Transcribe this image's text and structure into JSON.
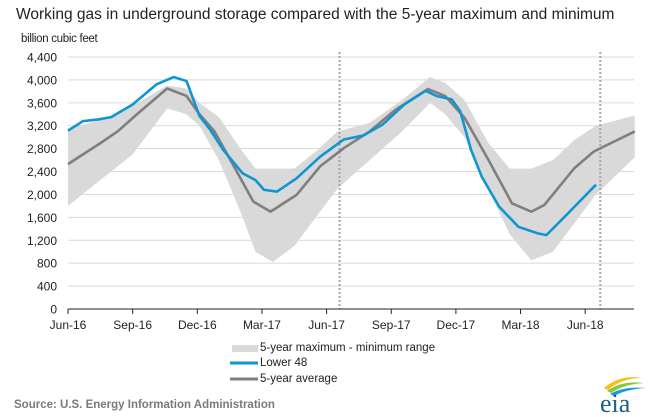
{
  "chart_data": {
    "type": "line",
    "title": "Working gas in underground  storage compared with the 5-year maximum and minimum",
    "ylabel": "billion cubic feet",
    "xlabel": "",
    "x_unit": "months since Jun-16",
    "ylim": [
      0,
      4400
    ],
    "xlim": [
      0,
      26.3
    ],
    "yticks": [
      "0",
      "400",
      "800",
      "1,200",
      "1,600",
      "2,000",
      "2,400",
      "2,800",
      "3,200",
      "3,600",
      "4,000",
      "4,400"
    ],
    "ytick_values": [
      0,
      400,
      800,
      1200,
      1600,
      2000,
      2400,
      2800,
      3200,
      3600,
      4000,
      4400
    ],
    "xticks": [
      "Jun-16",
      "Sep-16",
      "Dec-16",
      "Mar-17",
      "Jun-17",
      "Sep-17",
      "Dec-17",
      "Mar-18",
      "Jun-18"
    ],
    "xtick_values": [
      0,
      3,
      6,
      9,
      12,
      15,
      18,
      21,
      24
    ],
    "grid": true,
    "vertical_markers": [
      12.6,
      24.7
    ],
    "legend_position": "bottom",
    "range": {
      "name": "5-year maximum - minimum range",
      "color": "#d9d9d9",
      "x": [
        0,
        2,
        3,
        4.6,
        5.5,
        6.1,
        7,
        8,
        8.7,
        9.5,
        10.5,
        11.5,
        12.5,
        14,
        15.5,
        16.8,
        17.5,
        18.4,
        19.5,
        20.5,
        21.5,
        22.5,
        23.5,
        24.5,
        26.3
      ],
      "max": [
        3150,
        3350,
        3550,
        3900,
        3850,
        3600,
        3350,
        2800,
        2450,
        2450,
        2450,
        2750,
        3100,
        3250,
        3650,
        4050,
        3950,
        3650,
        2900,
        2450,
        2450,
        2600,
        2950,
        3200,
        3380
      ],
      "min": [
        1800,
        2400,
        2700,
        3500,
        3400,
        3200,
        2600,
        1700,
        1000,
        820,
        1100,
        1600,
        2100,
        2600,
        3100,
        3600,
        3400,
        3000,
        2100,
        1300,
        850,
        1000,
        1500,
        2000,
        2650
      ]
    },
    "series": [
      {
        "name": "Lower 48",
        "color": "#0f96d0",
        "x": [
          0,
          0.7,
          1.4,
          2,
          3,
          4.1,
          4.9,
          5.5,
          6.1,
          6.6,
          7.2,
          8.1,
          8.7,
          9.1,
          9.7,
          10.6,
          11.7,
          12.8,
          13.7,
          14.6,
          15.6,
          16.6,
          17.1,
          17.8,
          18.2,
          18.7,
          19.2,
          20,
          20.9,
          21.8,
          22.2,
          23.2,
          24.5
        ],
        "values": [
          3115,
          3280,
          3310,
          3350,
          3570,
          3920,
          4050,
          3980,
          3370,
          3130,
          2780,
          2370,
          2250,
          2080,
          2050,
          2280,
          2660,
          2960,
          3030,
          3220,
          3570,
          3810,
          3720,
          3660,
          3455,
          2780,
          2310,
          1790,
          1435,
          1320,
          1290,
          1670,
          2170
        ]
      },
      {
        "name": "5-year average",
        "color": "#7f7f7f",
        "x": [
          0,
          0.9,
          1.4,
          2.3,
          3.2,
          4.6,
          5.5,
          6.1,
          6.8,
          7.7,
          8.6,
          9.4,
          10.6,
          11.7,
          12.8,
          14,
          15.2,
          16.7,
          17.5,
          18.4,
          19.5,
          20.6,
          21.5,
          22.1,
          23.5,
          24.4,
          26.3
        ],
        "values": [
          2530,
          2750,
          2870,
          3100,
          3400,
          3850,
          3720,
          3400,
          3100,
          2490,
          1875,
          1700,
          1990,
          2490,
          2810,
          3100,
          3480,
          3840,
          3720,
          3340,
          2610,
          1845,
          1700,
          1815,
          2460,
          2750,
          3100
        ]
      }
    ]
  },
  "legend": {
    "range": "5-year maximum - minimum range",
    "lower48": "Lower 48",
    "avg": "5-year average"
  },
  "source": "Source:  U.S. Energy Information Administration",
  "logo_text": "eia"
}
